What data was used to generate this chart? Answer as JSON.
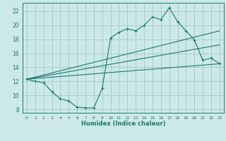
{
  "xlabel": "Humidex (Indice chaleur)",
  "xlim": [
    -0.5,
    23.5
  ],
  "ylim": [
    7.5,
    23.2
  ],
  "xticks": [
    0,
    1,
    2,
    3,
    4,
    5,
    6,
    7,
    8,
    9,
    10,
    11,
    12,
    13,
    14,
    15,
    16,
    17,
    18,
    19,
    20,
    21,
    22,
    23
  ],
  "yticks": [
    8,
    10,
    12,
    14,
    16,
    18,
    20,
    22
  ],
  "bg_color": "#cce8e8",
  "line_color": "#1a7a6e",
  "grid_color": "#a0c8c8",
  "curve_x": [
    0,
    1,
    2,
    3,
    4,
    5,
    6,
    7,
    8,
    9,
    10,
    11,
    12,
    13,
    14,
    15,
    16,
    17,
    18,
    19,
    20,
    21,
    22,
    23
  ],
  "curve_y": [
    12.3,
    12.0,
    11.8,
    10.5,
    9.5,
    9.2,
    8.3,
    8.2,
    8.2,
    11.0,
    18.2,
    19.0,
    19.5,
    19.2,
    20.0,
    21.2,
    20.8,
    22.5,
    20.5,
    19.2,
    17.9,
    15.0,
    15.3,
    14.5
  ],
  "trend1_x": [
    0,
    23
  ],
  "trend1_y": [
    12.3,
    14.5
  ],
  "trend2_x": [
    0,
    23
  ],
  "trend2_y": [
    12.3,
    17.2
  ],
  "trend3_x": [
    0,
    23
  ],
  "trend3_y": [
    12.3,
    19.2
  ]
}
